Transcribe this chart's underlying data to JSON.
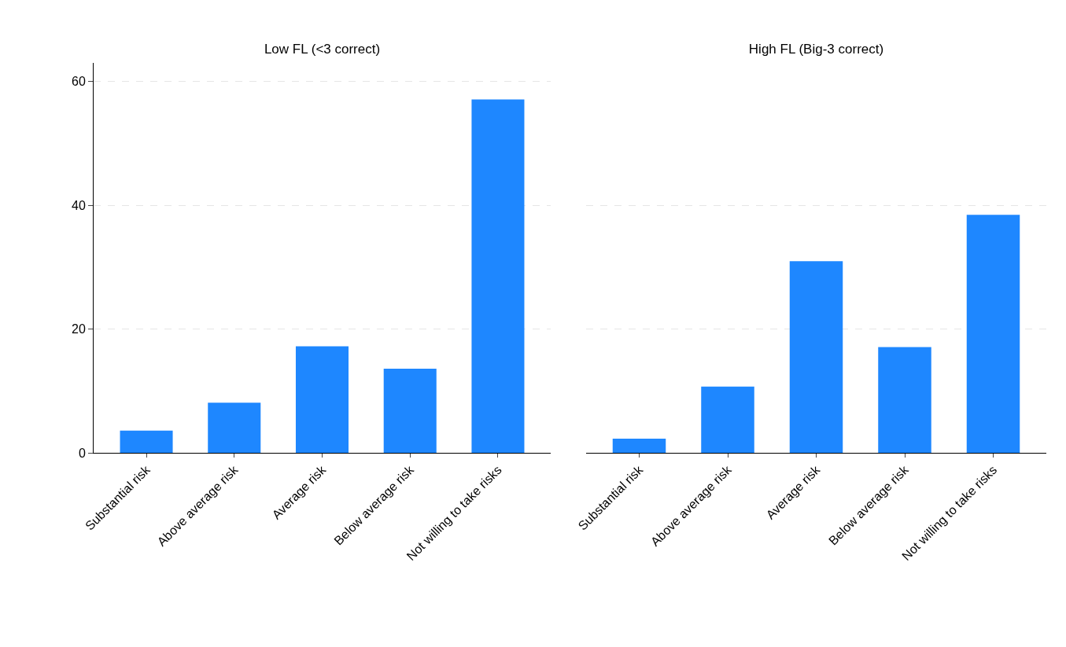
{
  "chart_data": [
    {
      "type": "bar",
      "title": "Low FL (<3 correct)",
      "categories": [
        "Substantial risk",
        "Above average risk",
        "Average risk",
        "Below average risk",
        "Not willing to take risks"
      ],
      "values": [
        3.6,
        8.1,
        17.2,
        13.6,
        57.1
      ],
      "color": "#1e87ff",
      "ylim": [
        0,
        63
      ],
      "yticks": [
        0,
        20,
        40,
        60
      ],
      "grid": "y"
    },
    {
      "type": "bar",
      "title": "High FL (Big-3 correct)",
      "categories": [
        "Substantial risk",
        "Above average risk",
        "Average risk",
        "Below average risk",
        "Not willing to take risks"
      ],
      "values": [
        2.3,
        10.7,
        31.0,
        17.1,
        38.5
      ],
      "color": "#1e87ff",
      "ylim": [
        0,
        60
      ],
      "yticks": [
        0,
        20,
        40,
        60
      ],
      "grid": "y",
      "tick_labels": "x"
    }
  ]
}
